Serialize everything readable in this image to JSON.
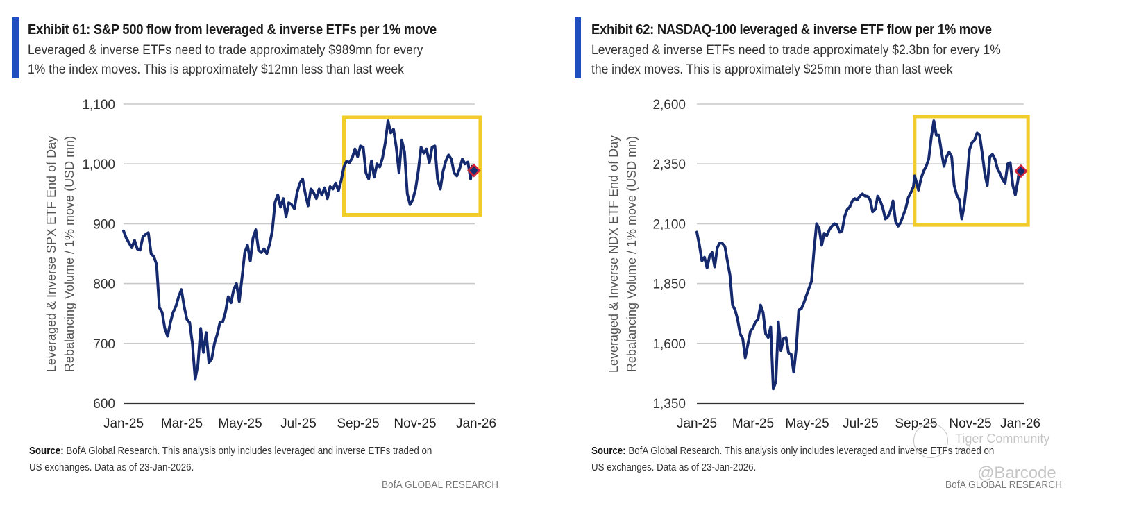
{
  "watermark": {
    "community": "Tiger Community",
    "handle": "@Barcode"
  },
  "brand_label": "BofA GLOBAL RESEARCH",
  "colors": {
    "accent": "#1f4fbf",
    "line": "#14296e",
    "highlight_box": "#f2cc2a",
    "marker_fill": "#14296e",
    "marker_edge": "#d0233a",
    "grid": "#c8c8c8",
    "axis": "#333333"
  },
  "chart_data": [
    {
      "id": "exhibit-61",
      "type": "line",
      "title": "Exhibit 61: S&P 500 flow from leveraged & inverse ETFs per 1% move",
      "subtitle_lines": [
        "Leveraged & inverse ETFs need to trade approximately $989mn for every",
        "1% the index moves. This is approximately $12mn less than last week"
      ],
      "xlabel": "",
      "ylabel_lines": [
        "Leveraged & Inverse SPX ETF End of Day",
        "Rebalancing Volume / 1% move (USD mn)"
      ],
      "x_ticks": [
        "Jan-25",
        "Mar-25",
        "May-25",
        "Jul-25",
        "Sep-25",
        "Nov-25",
        "Jan-26"
      ],
      "y_ticks": [
        600,
        700,
        800,
        900,
        1000,
        1100
      ],
      "y_tick_labels": [
        "600",
        "700",
        "800",
        "900",
        "1,000",
        "1,100"
      ],
      "ylim": [
        600,
        1100
      ],
      "x_range_months": [
        0,
        12.75
      ],
      "grid": "horizontal",
      "highlight_box": {
        "x_from_months": 8.0,
        "x_to_months": 12.95,
        "y_from": 915,
        "y_to": 1078
      },
      "last_point_marker": {
        "x_months": 12.72,
        "y": 989,
        "label": "latest"
      },
      "series": [
        {
          "name": "SPX leveraged & inverse ETF rebalancing / 1% move",
          "x_months": [
            0.0,
            0.1,
            0.2,
            0.3,
            0.4,
            0.5,
            0.6,
            0.7,
            0.8,
            0.9,
            1.0,
            1.1,
            1.2,
            1.3,
            1.4,
            1.5,
            1.6,
            1.7,
            1.8,
            1.9,
            2.0,
            2.1,
            2.2,
            2.3,
            2.4,
            2.5,
            2.6,
            2.7,
            2.8,
            2.9,
            3.0,
            3.1,
            3.2,
            3.3,
            3.4,
            3.5,
            3.6,
            3.7,
            3.8,
            3.9,
            4.0,
            4.1,
            4.2,
            4.3,
            4.4,
            4.5,
            4.6,
            4.7,
            4.8,
            4.9,
            5.0,
            5.1,
            5.2,
            5.3,
            5.4,
            5.5,
            5.6,
            5.7,
            5.8,
            5.9,
            6.0,
            6.1,
            6.2,
            6.3,
            6.4,
            6.5,
            6.6,
            6.7,
            6.8,
            6.9,
            7.0,
            7.1,
            7.2,
            7.3,
            7.4,
            7.5,
            7.6,
            7.7,
            7.8,
            7.9,
            8.0,
            8.1,
            8.2,
            8.3,
            8.4,
            8.5,
            8.6,
            8.7,
            8.8,
            8.9,
            9.0,
            9.1,
            9.2,
            9.3,
            9.4,
            9.5,
            9.6,
            9.7,
            9.8,
            9.9,
            10.0,
            10.1,
            10.2,
            10.3,
            10.4,
            10.5,
            10.6,
            10.7,
            10.8,
            10.9,
            11.0,
            11.1,
            11.2,
            11.3,
            11.4,
            11.5,
            11.6,
            11.7,
            11.8,
            11.9,
            12.0,
            12.1,
            12.2,
            12.3,
            12.4,
            12.5,
            12.6,
            12.65,
            12.72
          ],
          "values": [
            888,
            876,
            868,
            860,
            872,
            858,
            856,
            878,
            882,
            885,
            850,
            845,
            832,
            760,
            752,
            725,
            712,
            735,
            752,
            762,
            778,
            790,
            762,
            740,
            735,
            700,
            640,
            665,
            725,
            685,
            718,
            668,
            674,
            700,
            715,
            735,
            736,
            752,
            778,
            768,
            790,
            800,
            770,
            810,
            852,
            864,
            838,
            876,
            890,
            856,
            852,
            858,
            850,
            865,
            888,
            936,
            948,
            928,
            942,
            912,
            935,
            932,
            925,
            952,
            968,
            975,
            950,
            930,
            958,
            952,
            942,
            958,
            948,
            960,
            942,
            962,
            958,
            968,
            955,
            972,
            995,
            1005,
            1002,
            1010,
            1025,
            1012,
            1030,
            1028,
            985,
            975,
            1005,
            978,
            1000,
            995,
            1010,
            1035,
            1072,
            1052,
            1058,
            1028,
            985,
            1040,
            1020,
            950,
            932,
            940,
            958,
            988,
            1028,
            1018,
            1025,
            1002,
            1028,
            1030,
            975,
            958,
            988,
            1005,
            1015,
            1008,
            985,
            980,
            992,
            1008,
            1000,
            1003,
            975,
            996,
            990,
            958,
            989
          ]
        }
      ]
    },
    {
      "id": "exhibit-62",
      "type": "line",
      "title": "Exhibit 62: NASDAQ-100 leveraged & inverse ETF flow per 1% move",
      "subtitle_lines": [
        "Leveraged & inverse ETFs need to trade approximately $2.3bn for every 1%",
        "the index moves. This is approximately $25mn more than last week"
      ],
      "xlabel": "",
      "ylabel_lines": [
        "Leveraged & Inverse NDX ETF End of Day",
        "Rebalancing Volume / 1% move (USD mn)"
      ],
      "x_ticks": [
        "Jan-25",
        "Mar-25",
        "May-25",
        "Jul-25",
        "Sep-25",
        "Nov-25",
        "Jan-26"
      ],
      "y_ticks": [
        1350,
        1600,
        1850,
        2100,
        2350,
        2600
      ],
      "y_tick_labels": [
        "1,350",
        "1,600",
        "1,850",
        "2,100",
        "2,350",
        "2,600"
      ],
      "ylim": [
        1350,
        2600
      ],
      "x_range_months": [
        0,
        12.75
      ],
      "grid": "horizontal",
      "highlight_box": {
        "x_from_months": 8.55,
        "x_to_months": 13.0,
        "y_from": 2095,
        "y_to": 2548
      },
      "last_point_marker": {
        "x_months": 12.72,
        "y": 2320,
        "label": "latest"
      },
      "series": [
        {
          "name": "NDX leveraged & inverse ETF rebalancing / 1% move",
          "x_months": [
            0.0,
            0.1,
            0.2,
            0.3,
            0.4,
            0.5,
            0.6,
            0.7,
            0.8,
            0.9,
            1.0,
            1.1,
            1.2,
            1.3,
            1.4,
            1.5,
            1.6,
            1.7,
            1.8,
            1.9,
            2.0,
            2.1,
            2.2,
            2.3,
            2.4,
            2.5,
            2.6,
            2.7,
            2.8,
            2.9,
            3.0,
            3.1,
            3.2,
            3.3,
            3.4,
            3.5,
            3.6,
            3.7,
            3.8,
            3.9,
            4.0,
            4.1,
            4.2,
            4.3,
            4.4,
            4.5,
            4.6,
            4.7,
            4.8,
            4.9,
            5.0,
            5.1,
            5.2,
            5.3,
            5.4,
            5.5,
            5.6,
            5.7,
            5.8,
            5.9,
            6.0,
            6.1,
            6.2,
            6.3,
            6.4,
            6.5,
            6.6,
            6.7,
            6.8,
            6.9,
            7.0,
            7.1,
            7.2,
            7.3,
            7.4,
            7.5,
            7.6,
            7.7,
            7.8,
            7.9,
            8.0,
            8.1,
            8.2,
            8.3,
            8.4,
            8.5,
            8.55,
            8.6,
            8.7,
            8.8,
            8.9,
            9.0,
            9.1,
            9.2,
            9.3,
            9.4,
            9.5,
            9.6,
            9.7,
            9.8,
            9.9,
            10.0,
            10.1,
            10.2,
            10.3,
            10.4,
            10.5,
            10.6,
            10.7,
            10.8,
            10.9,
            11.0,
            11.1,
            11.2,
            11.3,
            11.4,
            11.5,
            11.6,
            11.7,
            11.8,
            11.9,
            12.0,
            12.1,
            12.2,
            12.3,
            12.4,
            12.5,
            12.6,
            12.65,
            12.72
          ],
          "values": [
            2065,
            2010,
            1945,
            1960,
            1915,
            1965,
            1980,
            1920,
            2000,
            2020,
            2018,
            2005,
            1945,
            1885,
            1760,
            1740,
            1700,
            1640,
            1620,
            1540,
            1595,
            1650,
            1665,
            1690,
            1700,
            1760,
            1730,
            1640,
            1625,
            1670,
            1410,
            1440,
            1690,
            1570,
            1620,
            1625,
            1560,
            1555,
            1480,
            1580,
            1740,
            1745,
            1770,
            1800,
            1830,
            1860,
            1990,
            2100,
            2080,
            2010,
            2060,
            2050,
            2075,
            2090,
            2100,
            2095,
            2065,
            2070,
            2130,
            2160,
            2170,
            2195,
            2205,
            2200,
            2215,
            2225,
            2215,
            2215,
            2200,
            2150,
            2160,
            2215,
            2195,
            2165,
            2120,
            2130,
            2155,
            2195,
            2110,
            2090,
            2105,
            2135,
            2165,
            2210,
            2230,
            2255,
            2300,
            2280,
            2240,
            2290,
            2320,
            2340,
            2370,
            2460,
            2530,
            2470,
            2470,
            2400,
            2340,
            2380,
            2400,
            2380,
            2260,
            2220,
            2200,
            2120,
            2180,
            2280,
            2410,
            2440,
            2450,
            2480,
            2470,
            2395,
            2310,
            2260,
            2380,
            2390,
            2370,
            2330,
            2310,
            2285,
            2270,
            2350,
            2355,
            2260,
            2220,
            2280,
            2320
          ]
        }
      ]
    }
  ],
  "left_panel": {
    "source_label": "Source:",
    "source_lines": [
      " BofA Global Research.  This analysis only includes leveraged and inverse ETFs traded on",
      "US exchanges.  Data as of 23-Jan-2026."
    ]
  },
  "right_panel": {
    "source_label": "Source:",
    "source_lines": [
      " BofA Global Research.  This analysis only includes leveraged and inverse ETFs traded on",
      "US exchanges.  Data as of 23-Jan-2026."
    ]
  }
}
